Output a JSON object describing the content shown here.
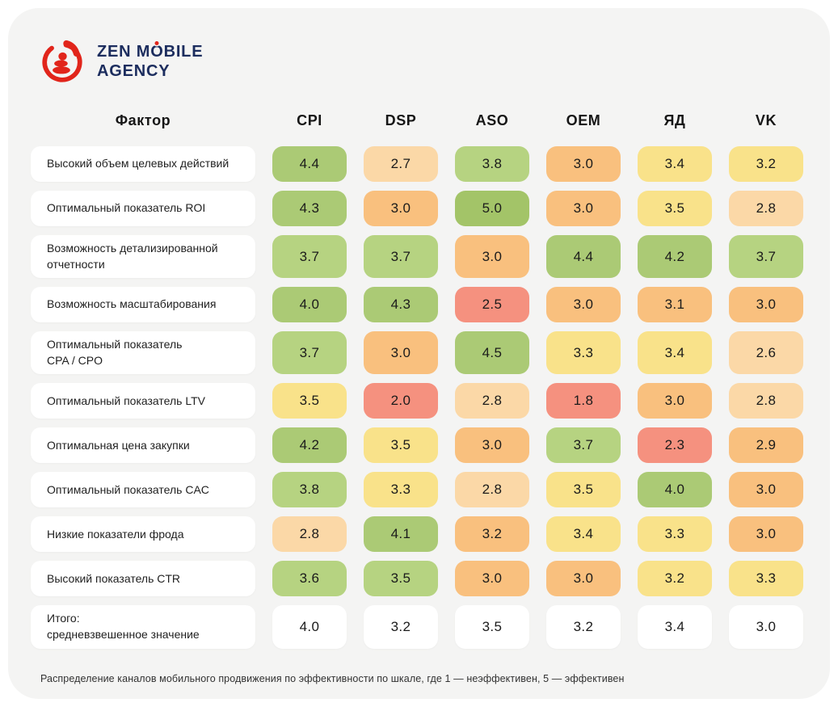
{
  "brand": {
    "line1_pre": "ZEN M",
    "line1_o": "O",
    "line1_post": "BILE",
    "line2": "AGENCY"
  },
  "colors": {
    "card_bg": "#f4f4f3",
    "navy": "#1c2d5e",
    "logo_red": "#e1251b",
    "g5": "#a3c468",
    "g4": "#abca75",
    "g3": "#b6d381",
    "yellow": "#f9e28a",
    "orange": "#f9c07e",
    "peach": "#fbd8a7",
    "salmon": "#f5917f"
  },
  "table": {
    "factor_header": "Фактор",
    "columns": [
      "CPI",
      "DSP",
      "ASO",
      "OEM",
      "ЯД",
      "VK"
    ],
    "rows": [
      {
        "label": "Высокий объем целевых действий",
        "cells": [
          {
            "v": "4.4",
            "c": "g4"
          },
          {
            "v": "2.7",
            "c": "peach"
          },
          {
            "v": "3.8",
            "c": "g3"
          },
          {
            "v": "3.0",
            "c": "orange"
          },
          {
            "v": "3.4",
            "c": "yellow"
          },
          {
            "v": "3.2",
            "c": "yellow"
          }
        ]
      },
      {
        "label": "Оптимальный показатель ROI",
        "cells": [
          {
            "v": "4.3",
            "c": "g4"
          },
          {
            "v": "3.0",
            "c": "orange"
          },
          {
            "v": "5.0",
            "c": "g5"
          },
          {
            "v": "3.0",
            "c": "orange"
          },
          {
            "v": "3.5",
            "c": "yellow"
          },
          {
            "v": "2.8",
            "c": "peach"
          }
        ]
      },
      {
        "label": "Возможность детализированной\nотчетности",
        "cells": [
          {
            "v": "3.7",
            "c": "g3"
          },
          {
            "v": "3.7",
            "c": "g3"
          },
          {
            "v": "3.0",
            "c": "orange"
          },
          {
            "v": "4.4",
            "c": "g4"
          },
          {
            "v": "4.2",
            "c": "g4"
          },
          {
            "v": "3.7",
            "c": "g3"
          }
        ]
      },
      {
        "label": "Возможность масштабирования",
        "cells": [
          {
            "v": "4.0",
            "c": "g4"
          },
          {
            "v": "4.3",
            "c": "g4"
          },
          {
            "v": "2.5",
            "c": "salmon"
          },
          {
            "v": "3.0",
            "c": "orange"
          },
          {
            "v": "3.1",
            "c": "orange"
          },
          {
            "v": "3.0",
            "c": "orange"
          }
        ]
      },
      {
        "label": "Оптимальный показатель\nCPA / CPO",
        "cells": [
          {
            "v": "3.7",
            "c": "g3"
          },
          {
            "v": "3.0",
            "c": "orange"
          },
          {
            "v": "4.5",
            "c": "g4"
          },
          {
            "v": "3.3",
            "c": "yellow"
          },
          {
            "v": "3.4",
            "c": "yellow"
          },
          {
            "v": "2.6",
            "c": "peach"
          }
        ]
      },
      {
        "label": "Оптимальный показатель LTV",
        "cells": [
          {
            "v": "3.5",
            "c": "yellow"
          },
          {
            "v": "2.0",
            "c": "salmon"
          },
          {
            "v": "2.8",
            "c": "peach"
          },
          {
            "v": "1.8",
            "c": "salmon"
          },
          {
            "v": "3.0",
            "c": "orange"
          },
          {
            "v": "2.8",
            "c": "peach"
          }
        ]
      },
      {
        "label": "Оптимальная цена закупки",
        "cells": [
          {
            "v": "4.2",
            "c": "g4"
          },
          {
            "v": "3.5",
            "c": "yellow"
          },
          {
            "v": "3.0",
            "c": "orange"
          },
          {
            "v": "3.7",
            "c": "g3"
          },
          {
            "v": "2.3",
            "c": "salmon"
          },
          {
            "v": "2.9",
            "c": "orange"
          }
        ]
      },
      {
        "label": "Оптимальный показатель CAC",
        "cells": [
          {
            "v": "3.8",
            "c": "g3"
          },
          {
            "v": "3.3",
            "c": "yellow"
          },
          {
            "v": "2.8",
            "c": "peach"
          },
          {
            "v": "3.5",
            "c": "yellow"
          },
          {
            "v": "4.0",
            "c": "g4"
          },
          {
            "v": "3.0",
            "c": "orange"
          }
        ]
      },
      {
        "label": "Низкие показатели фрода",
        "cells": [
          {
            "v": "2.8",
            "c": "peach"
          },
          {
            "v": "4.1",
            "c": "g4"
          },
          {
            "v": "3.2",
            "c": "orange"
          },
          {
            "v": "3.4",
            "c": "yellow"
          },
          {
            "v": "3.3",
            "c": "yellow"
          },
          {
            "v": "3.0",
            "c": "orange"
          }
        ]
      },
      {
        "label": "Высокий показатель CTR",
        "cells": [
          {
            "v": "3.6",
            "c": "g3"
          },
          {
            "v": "3.5",
            "c": "g3"
          },
          {
            "v": "3.0",
            "c": "orange"
          },
          {
            "v": "3.0",
            "c": "orange"
          },
          {
            "v": "3.2",
            "c": "yellow"
          },
          {
            "v": "3.3",
            "c": "yellow"
          }
        ]
      },
      {
        "label": "Итого:\nсредневзвешенное значение",
        "cells": [
          {
            "v": "4.0",
            "c": "white"
          },
          {
            "v": "3.2",
            "c": "white"
          },
          {
            "v": "3.5",
            "c": "white"
          },
          {
            "v": "3.2",
            "c": "white"
          },
          {
            "v": "3.4",
            "c": "white"
          },
          {
            "v": "3.0",
            "c": "white"
          }
        ]
      }
    ]
  },
  "footnote": "Распределение каналов мобильного продвижения по эффективности по шкале, где 1 — неэффективен, 5 — эффективен",
  "chart_data": {
    "type": "heatmap",
    "title": "Распределение каналов мобильного продвижения по эффективности",
    "columns": [
      "CPI",
      "DSP",
      "ASO",
      "OEM",
      "ЯД",
      "VK"
    ],
    "rows": [
      "Высокий объем целевых действий",
      "Оптимальный показатель ROI",
      "Возможность детализированной отчетности",
      "Возможность масштабирования",
      "Оптимальный показатель CPA / CPO",
      "Оптимальный показатель LTV",
      "Оптимальная цена закупки",
      "Оптимальный показатель CAC",
      "Низкие показатели фрода",
      "Высокий показатель CTR"
    ],
    "values": [
      [
        4.4,
        2.7,
        3.8,
        3.0,
        3.4,
        3.2
      ],
      [
        4.3,
        3.0,
        5.0,
        3.0,
        3.5,
        2.8
      ],
      [
        3.7,
        3.7,
        3.0,
        4.4,
        4.2,
        3.7
      ],
      [
        4.0,
        4.3,
        2.5,
        3.0,
        3.1,
        3.0
      ],
      [
        3.7,
        3.0,
        4.5,
        3.3,
        3.4,
        2.6
      ],
      [
        3.5,
        2.0,
        2.8,
        1.8,
        3.0,
        2.8
      ],
      [
        4.2,
        3.5,
        3.0,
        3.7,
        2.3,
        2.9
      ],
      [
        3.8,
        3.3,
        2.8,
        3.5,
        4.0,
        3.0
      ],
      [
        2.8,
        4.1,
        3.2,
        3.4,
        3.3,
        3.0
      ],
      [
        3.6,
        3.5,
        3.0,
        3.0,
        3.2,
        3.3
      ]
    ],
    "totals": {
      "label": "Итого: средневзвешенное значение",
      "values": [
        4.0,
        3.2,
        3.5,
        3.2,
        3.4,
        3.0
      ]
    },
    "scale": {
      "min": 1,
      "max": 5,
      "note": "1 — неэффективен, 5 — эффективен"
    },
    "legend_position": "none",
    "grid": false
  }
}
